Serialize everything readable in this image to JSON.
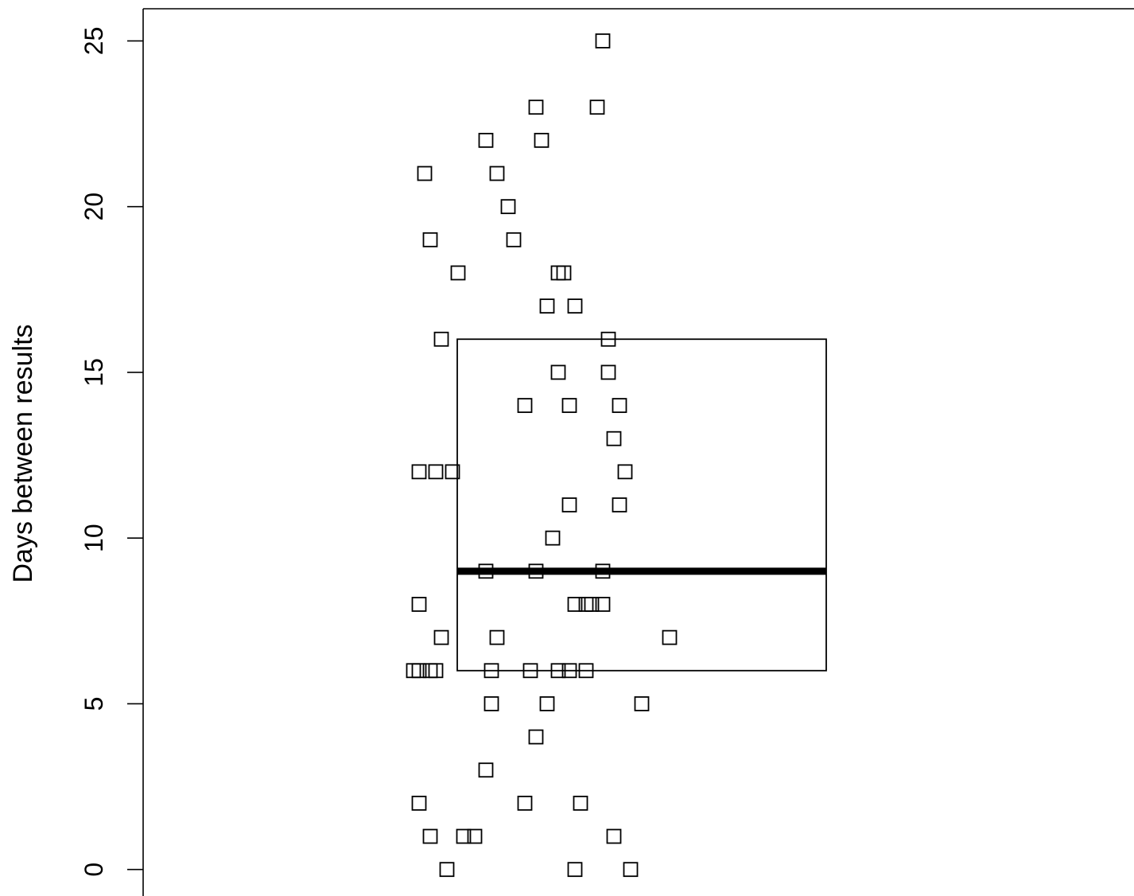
{
  "chart_data": {
    "type": "scatter",
    "title": "",
    "xlabel": "",
    "ylabel": "Days between results",
    "ylim": [
      -0.8,
      25.97
    ],
    "yticks": [
      0,
      5,
      10,
      15,
      20,
      25
    ],
    "grid": false,
    "legend": "none",
    "box": {
      "q1": 6,
      "median": 9,
      "q3": 16
    },
    "marker": "open-square",
    "color": "#000000",
    "points": [
      {
        "x": -0.07,
        "y": 25
      },
      {
        "x": -0.19,
        "y": 23
      },
      {
        "x": -0.08,
        "y": 23
      },
      {
        "x": -0.28,
        "y": 22
      },
      {
        "x": -0.18,
        "y": 22
      },
      {
        "x": -0.39,
        "y": 21
      },
      {
        "x": -0.26,
        "y": 21
      },
      {
        "x": -0.24,
        "y": 20
      },
      {
        "x": -0.38,
        "y": 19
      },
      {
        "x": -0.23,
        "y": 19
      },
      {
        "x": -0.33,
        "y": 18
      },
      {
        "x": -0.15,
        "y": 18
      },
      {
        "x": -0.14,
        "y": 18
      },
      {
        "x": -0.17,
        "y": 17
      },
      {
        "x": -0.12,
        "y": 17
      },
      {
        "x": -0.36,
        "y": 16
      },
      {
        "x": -0.06,
        "y": 16
      },
      {
        "x": -0.15,
        "y": 15
      },
      {
        "x": -0.06,
        "y": 15
      },
      {
        "x": -0.21,
        "y": 14
      },
      {
        "x": -0.13,
        "y": 14
      },
      {
        "x": -0.04,
        "y": 14
      },
      {
        "x": -0.05,
        "y": 13
      },
      {
        "x": -0.4,
        "y": 12
      },
      {
        "x": -0.37,
        "y": 12
      },
      {
        "x": -0.34,
        "y": 12
      },
      {
        "x": -0.03,
        "y": 12
      },
      {
        "x": -0.13,
        "y": 11
      },
      {
        "x": -0.04,
        "y": 11
      },
      {
        "x": -0.16,
        "y": 10
      },
      {
        "x": -0.28,
        "y": 9
      },
      {
        "x": -0.19,
        "y": 9
      },
      {
        "x": -0.07,
        "y": 9
      },
      {
        "x": -0.4,
        "y": 8
      },
      {
        "x": -0.12,
        "y": 8
      },
      {
        "x": -0.1,
        "y": 8
      },
      {
        "x": -0.09,
        "y": 8
      },
      {
        "x": -0.07,
        "y": 8
      },
      {
        "x": -0.36,
        "y": 7
      },
      {
        "x": -0.26,
        "y": 7
      },
      {
        "x": 0.05,
        "y": 7
      },
      {
        "x": -0.41,
        "y": 6
      },
      {
        "x": -0.4,
        "y": 6
      },
      {
        "x": -0.38,
        "y": 6
      },
      {
        "x": -0.37,
        "y": 6
      },
      {
        "x": -0.27,
        "y": 6
      },
      {
        "x": -0.2,
        "y": 6
      },
      {
        "x": -0.15,
        "y": 6
      },
      {
        "x": -0.13,
        "y": 6
      },
      {
        "x": -0.1,
        "y": 6
      },
      {
        "x": -0.27,
        "y": 5
      },
      {
        "x": -0.17,
        "y": 5
      },
      {
        "x": 0.0,
        "y": 5
      },
      {
        "x": -0.19,
        "y": 4
      },
      {
        "x": -0.28,
        "y": 3
      },
      {
        "x": -0.4,
        "y": 2
      },
      {
        "x": -0.21,
        "y": 2
      },
      {
        "x": -0.11,
        "y": 2
      },
      {
        "x": -0.38,
        "y": 1
      },
      {
        "x": -0.32,
        "y": 1
      },
      {
        "x": -0.3,
        "y": 1
      },
      {
        "x": -0.05,
        "y": 1
      },
      {
        "x": -0.35,
        "y": 0
      },
      {
        "x": -0.12,
        "y": 0
      },
      {
        "x": -0.02,
        "y": 0
      }
    ]
  }
}
